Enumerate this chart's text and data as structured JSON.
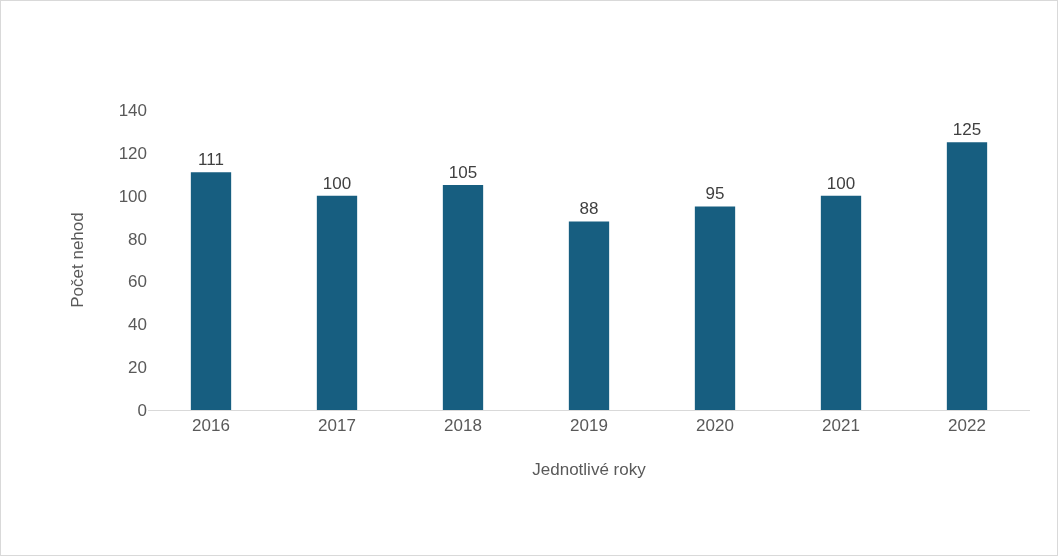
{
  "chart_data": {
    "type": "bar",
    "xlabel": "Jednotlivé roky",
    "ylabel": "Počet nehod",
    "categories": [
      "2016",
      "2017",
      "2018",
      "2019",
      "2020",
      "2021",
      "2022"
    ],
    "values": [
      111,
      100,
      105,
      88,
      95,
      100,
      125
    ],
    "color": "#175e80",
    "ylim": [
      0,
      140
    ],
    "yticks": [
      0,
      20,
      40,
      60,
      80,
      100,
      120,
      140
    ],
    "grid": false,
    "data_labels": true
  }
}
